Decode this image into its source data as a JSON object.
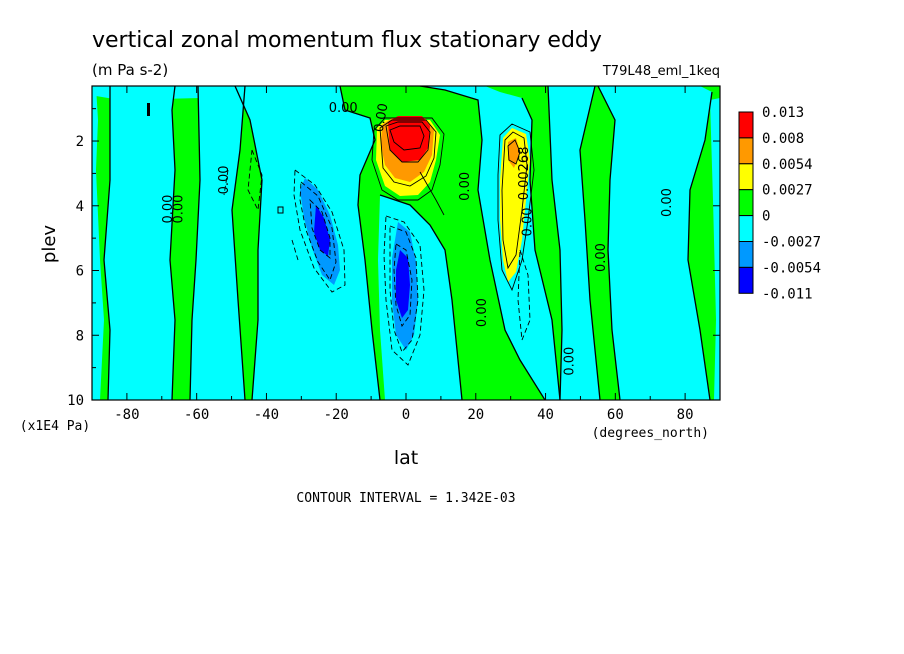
{
  "chart_data": {
    "type": "heatmap",
    "title": "vertical zonal momentum flux stationary eddy",
    "units": "(m Pa s-2)",
    "dataset": "T79L48_eml_1keq",
    "xlabel": "lat",
    "x_units": "(degrees_north)",
    "ylabel": "plev",
    "y_units": "(x1E4 Pa)",
    "xlim": [
      -90,
      90
    ],
    "ylim": [
      10,
      0.3
    ],
    "x_ticks": [
      "-80",
      "-60",
      "-40",
      "-20",
      "0",
      "20",
      "40",
      "60",
      "80"
    ],
    "y_ticks": [
      "2",
      "4",
      "6",
      "8",
      "10"
    ],
    "contour_interval_text": "CONTOUR INTERVAL = 1.342E-03",
    "colorbar": {
      "labels": [
        "0.013",
        "0.008",
        "0.0054",
        "0.0027",
        "0",
        "-0.0027",
        "-0.0054",
        "-0.011"
      ],
      "colors": [
        "#ff0000",
        "#ff9900",
        "#ffff00",
        "#00ff00",
        "#00ffff",
        "#0099ff",
        "#0000ff"
      ]
    },
    "contour_labels": [
      {
        "text": "0.00",
        "lat": -67,
        "plev": 4.1,
        "rotate": -90
      },
      {
        "text": "0.00",
        "lat": -64,
        "plev": 4.1,
        "rotate": -90
      },
      {
        "text": "0.00",
        "lat": -51,
        "plev": 3.2,
        "rotate": -90
      },
      {
        "text": "0.00",
        "lat": -18,
        "plev": 1.1,
        "rotate": 0
      },
      {
        "text": "0.00",
        "lat": -6,
        "plev": 1.3,
        "rotate": -80
      },
      {
        "text": "0.00",
        "lat": 18,
        "plev": 3.4,
        "rotate": -90
      },
      {
        "text": "0.00268",
        "lat": 35,
        "plev": 3.0,
        "rotate": -90
      },
      {
        "text": "0.00",
        "lat": 36,
        "plev": 4.5,
        "rotate": -90
      },
      {
        "text": "0.00",
        "lat": 23,
        "plev": 7.3,
        "rotate": -90
      },
      {
        "text": "0.00",
        "lat": 57,
        "plev": 5.6,
        "rotate": -90
      },
      {
        "text": "0.00",
        "lat": 48,
        "plev": 8.8,
        "rotate": -90
      },
      {
        "text": "0.00",
        "lat": 76,
        "plev": 3.9,
        "rotate": -90
      }
    ]
  }
}
